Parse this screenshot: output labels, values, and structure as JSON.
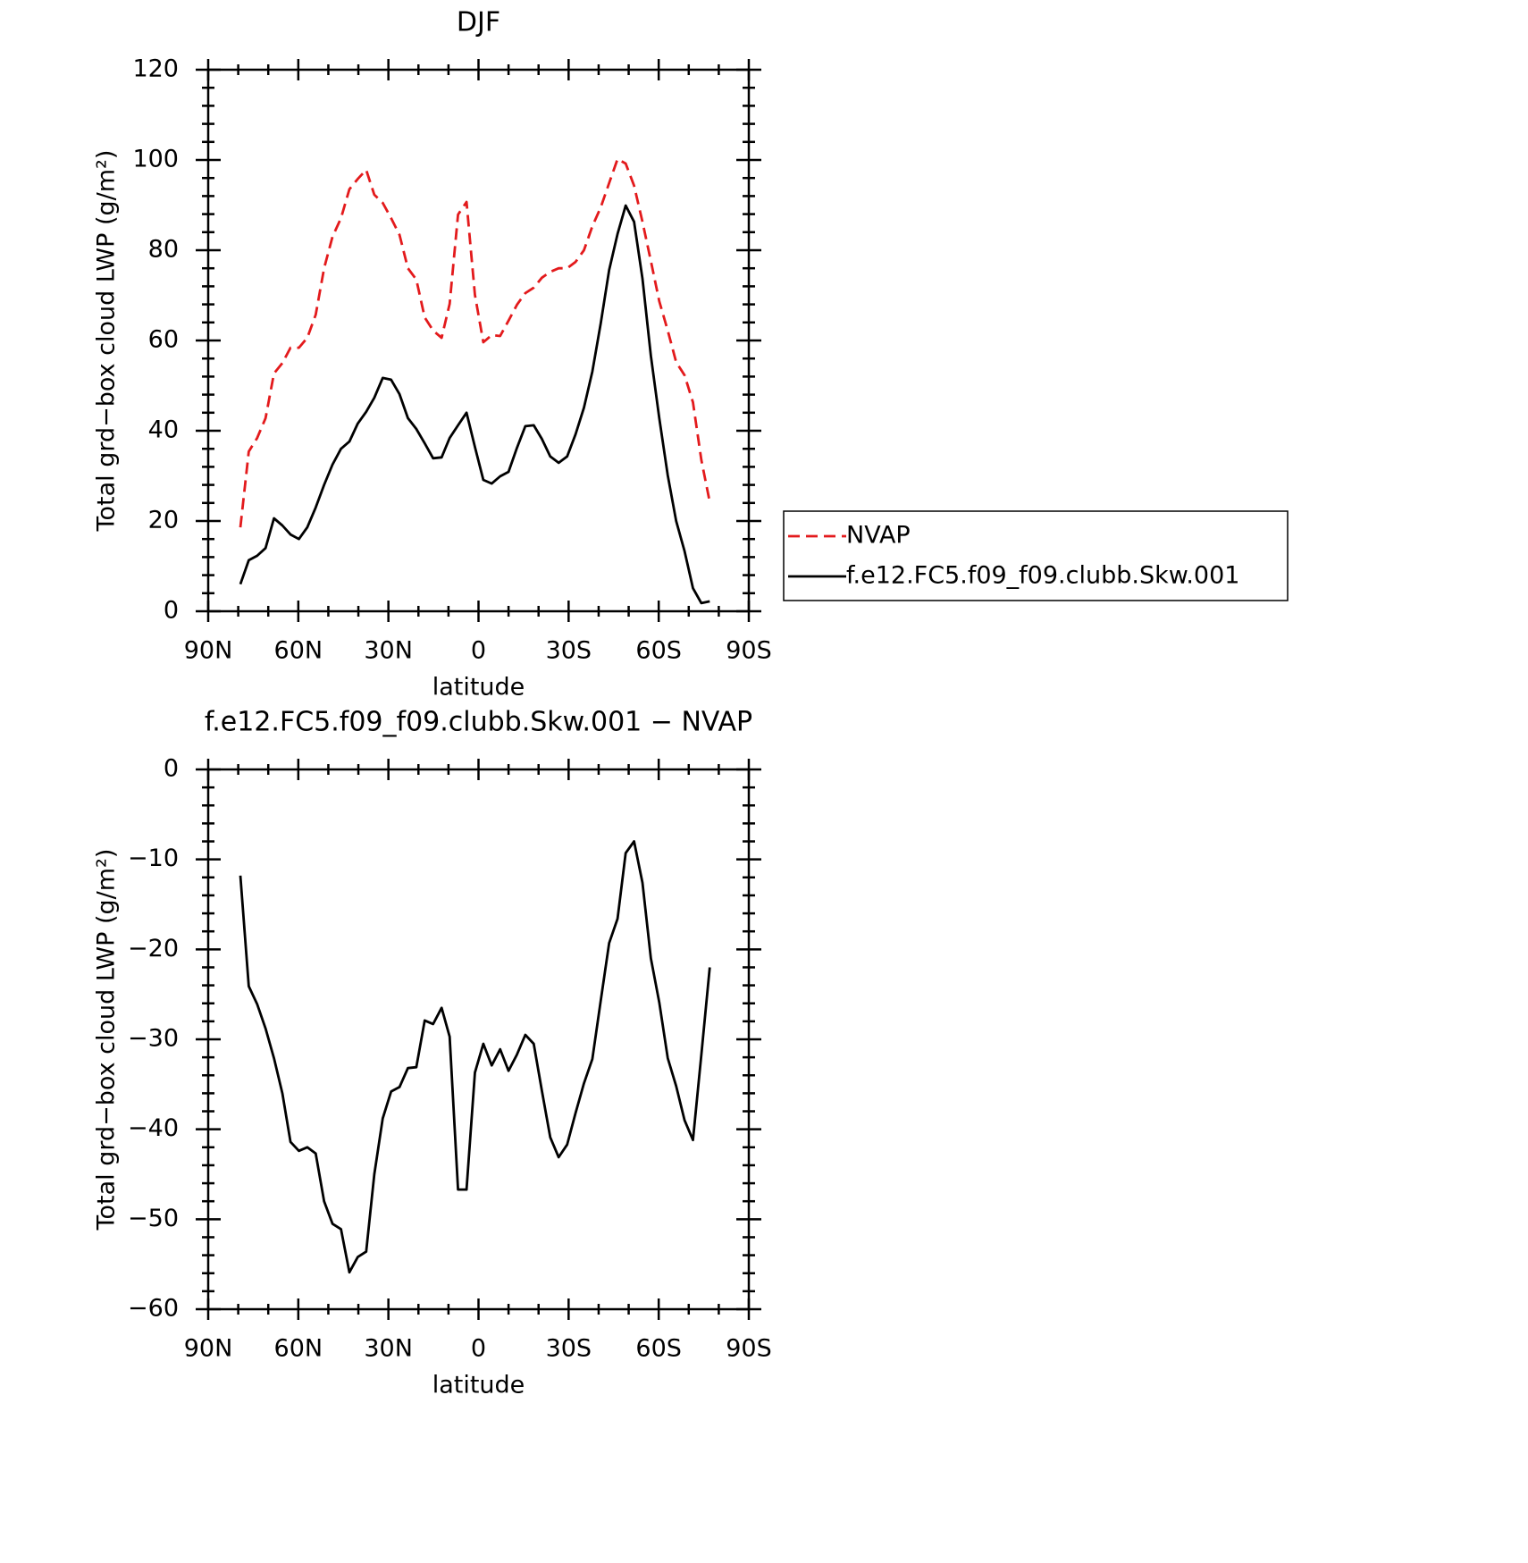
{
  "chart_data": [
    {
      "type": "line",
      "title": "DJF",
      "xlabel": "latitude",
      "ylabel": "Total grd−box cloud LWP (g/m²)",
      "xlim": [
        90,
        -90
      ],
      "xticks": [
        {
          "value": 90,
          "label": "90N"
        },
        {
          "value": 60,
          "label": "60N"
        },
        {
          "value": 30,
          "label": "30N"
        },
        0,
        {
          "value": -30,
          "label": "30S"
        },
        {
          "value": -60,
          "label": "60S"
        },
        {
          "value": -90,
          "label": "90S"
        }
      ],
      "ylim": [
        0,
        120
      ],
      "yticks": [
        0,
        20,
        40,
        60,
        80,
        100,
        120
      ],
      "legend": "right",
      "x": [
        79.3,
        76.5,
        73.7,
        70.9,
        68.1,
        65.3,
        62.6,
        59.8,
        57.0,
        54.2,
        51.4,
        48.6,
        45.8,
        43.0,
        40.2,
        37.4,
        34.7,
        31.9,
        29.1,
        26.3,
        23.5,
        20.7,
        17.9,
        15.1,
        12.3,
        9.6,
        6.8,
        4.0,
        1.2,
        -1.6,
        -4.4,
        -7.2,
        -10.0,
        -12.8,
        -15.6,
        -18.4,
        -21.1,
        -23.9,
        -26.7,
        -29.5,
        -32.3,
        -35.1,
        -37.9,
        -40.7,
        -43.5,
        -46.3,
        -49.0,
        -51.8,
        -54.6,
        -57.4,
        -60.2,
        -63.0,
        -65.8,
        -68.6,
        -71.4,
        -74.2,
        -77.0
      ],
      "series": [
        {
          "name": "NVAP",
          "color": "#e31a1c",
          "dash": true,
          "values": [
            18.6,
            35.4,
            38.4,
            42.8,
            52.7,
            55,
            58.4,
            58.4,
            60.6,
            65.7,
            76,
            83,
            87.1,
            93.5,
            95.8,
            97.8,
            92.3,
            90.5,
            87.1,
            83.4,
            76,
            73.5,
            65.1,
            62.2,
            60.6,
            68.1,
            87.9,
            90.7,
            70.1,
            59.6,
            61.2,
            61,
            64.4,
            67.9,
            70.5,
            71.7,
            73.9,
            75.2,
            76,
            76,
            77.4,
            80,
            85.3,
            89.5,
            94.9,
            100.2,
            99.2,
            94.3,
            86.3,
            77.6,
            68.7,
            62.2,
            55.2,
            52.3,
            46.3,
            33.5,
            24.2
          ]
        },
        {
          "name": "f.e12.FC5.f09_f09.clubb.Skw.001",
          "color": "#000000",
          "dash": false,
          "values": [
            6,
            11.3,
            12.3,
            14,
            20.6,
            19,
            17,
            16,
            18.6,
            23,
            28,
            32.5,
            36,
            37.6,
            41.6,
            44.2,
            47.3,
            51.7,
            51.3,
            48.1,
            42.8,
            40.4,
            37.2,
            33.9,
            34.1,
            38.4,
            41.2,
            44,
            36.4,
            29.1,
            28.3,
            29.9,
            30.9,
            36.2,
            41,
            41.2,
            38.2,
            34.3,
            32.9,
            34.3,
            39.2,
            45.1,
            53.1,
            63.8,
            75.6,
            83.6,
            89.9,
            86.3,
            73.7,
            56.6,
            42.8,
            30.1,
            20,
            13.3,
            5.1,
            1.8,
            2.2
          ]
        }
      ]
    },
    {
      "type": "line",
      "title": "f.e12.FC5.f09_f09.clubb.Skw.001 − NVAP",
      "xlabel": "latitude",
      "ylabel": "Total grd−box cloud LWP (g/m²)",
      "xlim": [
        90,
        -90
      ],
      "xticks": [
        {
          "value": 90,
          "label": "90N"
        },
        {
          "value": 60,
          "label": "60N"
        },
        {
          "value": 30,
          "label": "30N"
        },
        0,
        {
          "value": -30,
          "label": "30S"
        },
        {
          "value": -60,
          "label": "60S"
        },
        {
          "value": -90,
          "label": "90S"
        }
      ],
      "ylim": [
        -60,
        0
      ],
      "yticks": [
        {
          "value": -60,
          "label": "−60"
        },
        {
          "value": -50,
          "label": "−50"
        },
        {
          "value": -40,
          "label": "−40"
        },
        {
          "value": -30,
          "label": "−30"
        },
        {
          "value": -20,
          "label": "−20"
        },
        {
          "value": -10,
          "label": "−10"
        },
        0
      ],
      "x": [
        79.3,
        76.5,
        73.7,
        70.9,
        68.1,
        65.3,
        62.6,
        59.8,
        57.0,
        54.2,
        51.4,
        48.6,
        45.8,
        43.0,
        40.2,
        37.4,
        34.7,
        31.9,
        29.1,
        26.3,
        23.5,
        20.7,
        17.9,
        15.1,
        12.3,
        9.6,
        6.8,
        4.0,
        1.2,
        -1.6,
        -4.4,
        -7.2,
        -10.0,
        -12.8,
        -15.6,
        -18.4,
        -21.1,
        -23.9,
        -26.7,
        -29.5,
        -32.3,
        -35.1,
        -37.9,
        -40.7,
        -43.5,
        -46.3,
        -49.0,
        -51.8,
        -54.6,
        -57.4,
        -60.2,
        -63.0,
        -65.8,
        -68.6,
        -71.4,
        -74.2,
        -77.0
      ],
      "color": "#000000",
      "values": [
        -11.8,
        -24.1,
        -26.1,
        -28.8,
        -32.1,
        -36,
        -41.4,
        -42.4,
        -42,
        -42.7,
        -48,
        -50.5,
        -51.1,
        -55.9,
        -54.2,
        -53.6,
        -45,
        -38.8,
        -35.8,
        -35.3,
        -33.2,
        -33.1,
        -27.9,
        -28.3,
        -26.5,
        -29.7,
        -46.7,
        -46.7,
        -33.7,
        -30.5,
        -32.9,
        -31.1,
        -33.5,
        -31.7,
        -29.5,
        -30.5,
        -35.7,
        -40.9,
        -43.1,
        -41.7,
        -38.2,
        -34.9,
        -32.2,
        -25.7,
        -19.3,
        -16.6,
        -9.3,
        -8,
        -12.6,
        -21,
        -25.9,
        -32.1,
        -35.2,
        -39,
        -41.2,
        -31.7,
        -22
      ]
    }
  ]
}
